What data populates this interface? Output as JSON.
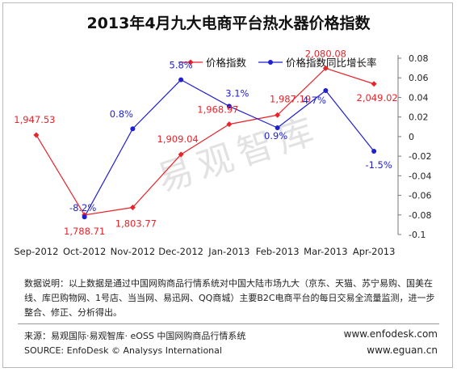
{
  "chart_data": {
    "type": "line",
    "title": "2013年4月九大电商平台热水器价格指数",
    "categories": [
      "Sep-2012",
      "Oct-2012",
      "Nov-2012",
      "Dec-2012",
      "Jan-2013",
      "Feb-2013",
      "Mar-2013",
      "Apr-2013"
    ],
    "series": [
      {
        "name": "价格指数",
        "axis": "left",
        "color": "#e8232a",
        "marker": "diamond",
        "values": [
          1947.53,
          1788.71,
          1803.77,
          1909.04,
          1968.97,
          1987.19,
          2080.08,
          2049.02
        ],
        "labels": [
          "1,947.53",
          "1,788.71",
          "1,803.77",
          "1,909.04",
          "1,968.97",
          "1,987.19",
          "2,080.08",
          "2,049.02"
        ]
      },
      {
        "name": "价格指数同比增长率",
        "axis": "right",
        "color": "#1f1fd0",
        "marker": "circle",
        "values": [
          null,
          -0.082,
          0.008,
          0.058,
          0.031,
          0.009,
          0.047,
          -0.015
        ],
        "labels": [
          "",
          "-8.2%",
          "0.8%",
          "5.8%",
          "3.1%",
          "0.9%",
          "4.7%",
          "-1.5%"
        ]
      }
    ],
    "left_axis": {
      "min": 1750,
      "max": 2100,
      "tick_labels_shown": false
    },
    "right_axis": {
      "min": -0.1,
      "max": 0.08,
      "ticks": [
        0.08,
        0.06,
        0.04,
        0.02,
        0,
        -0.02,
        -0.04,
        -0.06,
        -0.08,
        -0.1
      ],
      "tick_labels": [
        "0.08",
        "0.06",
        "0.04",
        "0.02",
        "0",
        "-0.02",
        "-0.04",
        "-0.06",
        "-0.08",
        "-0.1"
      ]
    },
    "grid": false,
    "legend_position": "top-center"
  },
  "watermark": "易观智库",
  "note": "数据说明：以上数据是通过中国网购商品行情系统对中国大陆市场九大（京东、天猫、苏宁易购、国美在线、库巴购物网、1号店、当当网、易迅网、QQ商城）主要B2C电商平台的每日交易全流量监测，进一步整合、修正、分析得出。",
  "source_cn": "来源：易观国际·易观智库· eOSS 中国网购商品行情系统",
  "source_en": "SOURCE: EnfoDesk © Analysys International",
  "website_1": "www.enfodesk.com",
  "website_2": "www.eguan.cn"
}
